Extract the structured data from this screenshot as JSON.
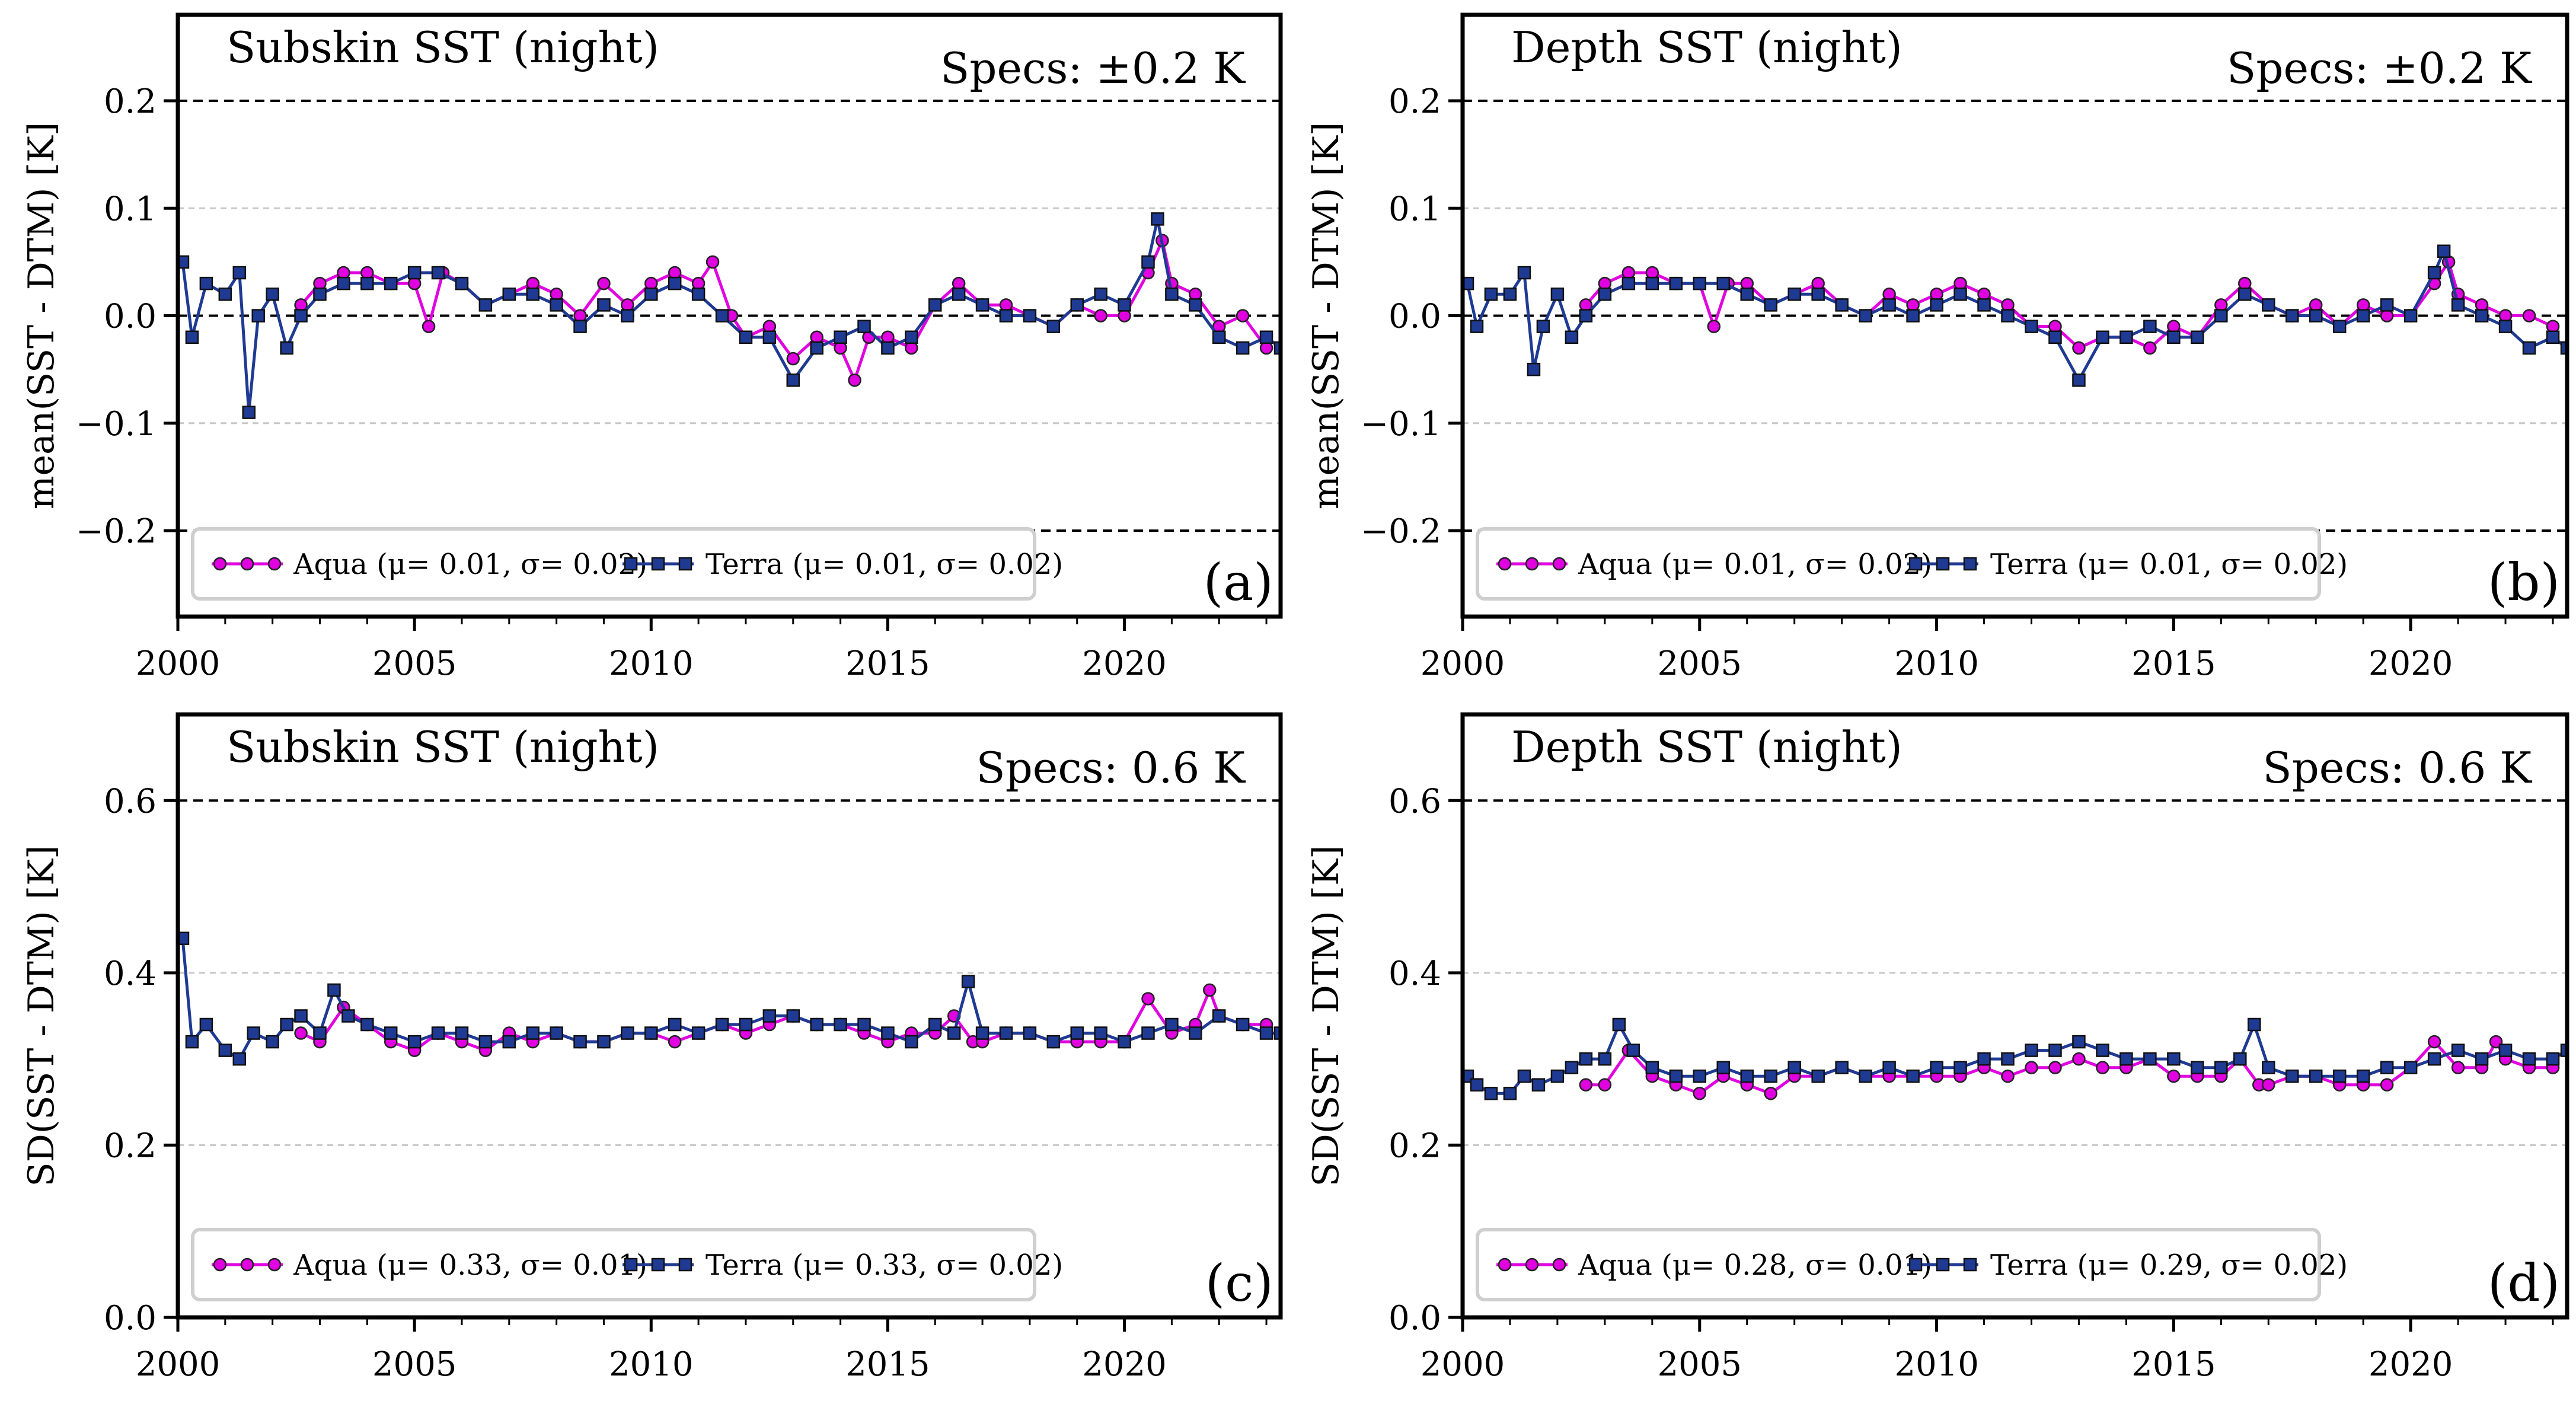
{
  "chart_data": [
    {
      "type": "line",
      "panel_label": "(a)",
      "title": "Subskin SST (night)",
      "spec_text": "Specs: ±0.2 K",
      "ylabel": "mean(SST - DTM) [K]",
      "xlim": [
        2000,
        2023.3
      ],
      "ylim": [
        -0.28,
        0.28
      ],
      "xticks": [
        "2000",
        "2005",
        "2010",
        "2015",
        "2020"
      ],
      "xtick_values": [
        2000,
        2005,
        2010,
        2015,
        2020
      ],
      "yticks": [
        "−0.2",
        "−0.1",
        "0.0",
        "0.1",
        "0.2"
      ],
      "ytick_values": [
        -0.2,
        -0.1,
        0.0,
        0.1,
        0.2
      ],
      "gridlines": [
        -0.1,
        0.1
      ],
      "reference_lines": [
        -0.2,
        0.0,
        0.2
      ],
      "legend": [
        "Aqua (μ= 0.01, σ= 0.02)",
        "Terra (μ= 0.01, σ= 0.02)"
      ],
      "series": [
        {
          "name": "Aqua",
          "color": "#e000e0",
          "marker": "circle",
          "x": [
            2002.6,
            2003.0,
            2003.5,
            2004.0,
            2004.5,
            2005.0,
            2005.3,
            2005.6,
            2006.0,
            2006.5,
            2007.0,
            2007.5,
            2008.0,
            2008.5,
            2009.0,
            2009.5,
            2010.0,
            2010.5,
            2011.0,
            2011.3,
            2011.7,
            2012.0,
            2012.5,
            2013.0,
            2013.5,
            2014.0,
            2014.3,
            2014.6,
            2015.0,
            2015.5,
            2016.0,
            2016.5,
            2017.0,
            2017.5,
            2018.0,
            2018.5,
            2019.0,
            2019.5,
            2020.0,
            2020.5,
            2020.8,
            2021.0,
            2021.5,
            2022.0,
            2022.5,
            2023.0
          ],
          "y": [
            0.01,
            0.03,
            0.04,
            0.04,
            0.03,
            0.03,
            -0.01,
            0.04,
            0.03,
            0.01,
            0.02,
            0.03,
            0.02,
            0.0,
            0.03,
            0.01,
            0.03,
            0.04,
            0.03,
            0.05,
            0.0,
            -0.02,
            -0.01,
            -0.04,
            -0.02,
            -0.03,
            -0.06,
            -0.02,
            -0.02,
            -0.03,
            0.01,
            0.03,
            0.01,
            0.01,
            0.0,
            -0.01,
            0.01,
            0.0,
            0.0,
            0.04,
            0.07,
            0.03,
            0.02,
            -0.01,
            0.0,
            -0.03
          ]
        },
        {
          "name": "Terra",
          "color": "#1f3a93",
          "marker": "square",
          "x": [
            2000.1,
            2000.3,
            2000.6,
            2001.0,
            2001.3,
            2001.5,
            2001.7,
            2002.0,
            2002.3,
            2002.6,
            2003.0,
            2003.5,
            2004.0,
            2004.5,
            2005.0,
            2005.5,
            2006.0,
            2006.5,
            2007.0,
            2007.5,
            2008.0,
            2008.5,
            2009.0,
            2009.5,
            2010.0,
            2010.5,
            2011.0,
            2011.5,
            2012.0,
            2012.5,
            2013.0,
            2013.5,
            2014.0,
            2014.5,
            2015.0,
            2015.5,
            2016.0,
            2016.5,
            2017.0,
            2017.5,
            2018.0,
            2018.5,
            2019.0,
            2019.5,
            2020.0,
            2020.5,
            2020.7,
            2021.0,
            2021.5,
            2022.0,
            2022.5,
            2023.0,
            2023.3
          ],
          "y": [
            0.05,
            -0.02,
            0.03,
            0.02,
            0.04,
            -0.09,
            0.0,
            0.02,
            -0.03,
            0.0,
            0.02,
            0.03,
            0.03,
            0.03,
            0.04,
            0.04,
            0.03,
            0.01,
            0.02,
            0.02,
            0.01,
            -0.01,
            0.01,
            0.0,
            0.02,
            0.03,
            0.02,
            0.0,
            -0.02,
            -0.02,
            -0.06,
            -0.03,
            -0.02,
            -0.01,
            -0.03,
            -0.02,
            0.01,
            0.02,
            0.01,
            0.0,
            0.0,
            -0.01,
            0.01,
            0.02,
            0.01,
            0.05,
            0.09,
            0.02,
            0.01,
            -0.02,
            -0.03,
            -0.02,
            -0.03
          ]
        }
      ]
    },
    {
      "type": "line",
      "panel_label": "(b)",
      "title": "Depth SST (night)",
      "spec_text": "Specs: ±0.2 K",
      "ylabel": "mean(SST - DTM) [K]",
      "xlim": [
        2000,
        2023.3
      ],
      "ylim": [
        -0.28,
        0.28
      ],
      "xticks": [
        "2000",
        "2005",
        "2010",
        "2015",
        "2020"
      ],
      "xtick_values": [
        2000,
        2005,
        2010,
        2015,
        2020
      ],
      "yticks": [
        "−0.2",
        "−0.1",
        "0.0",
        "0.1",
        "0.2"
      ],
      "ytick_values": [
        -0.2,
        -0.1,
        0.0,
        0.1,
        0.2
      ],
      "gridlines": [
        -0.1,
        0.1
      ],
      "reference_lines": [
        -0.2,
        0.0,
        0.2
      ],
      "legend": [
        "Aqua (μ= 0.01, σ= 0.02)",
        "Terra (μ= 0.01, σ= 0.02)"
      ],
      "series": [
        {
          "name": "Aqua",
          "color": "#e000e0",
          "marker": "circle",
          "x": [
            2002.6,
            2003.0,
            2003.5,
            2004.0,
            2004.5,
            2005.0,
            2005.3,
            2005.6,
            2006.0,
            2006.5,
            2007.0,
            2007.5,
            2008.0,
            2008.5,
            2009.0,
            2009.5,
            2010.0,
            2010.5,
            2011.0,
            2011.5,
            2012.0,
            2012.5,
            2013.0,
            2013.5,
            2014.0,
            2014.5,
            2015.0,
            2015.5,
            2016.0,
            2016.5,
            2017.0,
            2017.5,
            2018.0,
            2018.5,
            2019.0,
            2019.5,
            2020.0,
            2020.5,
            2020.8,
            2021.0,
            2021.5,
            2022.0,
            2022.5,
            2023.0
          ],
          "y": [
            0.01,
            0.03,
            0.04,
            0.04,
            0.03,
            0.03,
            -0.01,
            0.03,
            0.03,
            0.01,
            0.02,
            0.03,
            0.01,
            0.0,
            0.02,
            0.01,
            0.02,
            0.03,
            0.02,
            0.01,
            -0.01,
            -0.01,
            -0.03,
            -0.02,
            -0.02,
            -0.03,
            -0.01,
            -0.02,
            0.01,
            0.03,
            0.01,
            0.0,
            0.01,
            -0.01,
            0.01,
            0.0,
            0.0,
            0.03,
            0.05,
            0.02,
            0.01,
            0.0,
            0.0,
            -0.01
          ]
        },
        {
          "name": "Terra",
          "color": "#1f3a93",
          "marker": "square",
          "x": [
            2000.1,
            2000.3,
            2000.6,
            2001.0,
            2001.3,
            2001.5,
            2001.7,
            2002.0,
            2002.3,
            2002.6,
            2003.0,
            2003.5,
            2004.0,
            2004.5,
            2005.0,
            2005.5,
            2006.0,
            2006.5,
            2007.0,
            2007.5,
            2008.0,
            2008.5,
            2009.0,
            2009.5,
            2010.0,
            2010.5,
            2011.0,
            2011.5,
            2012.0,
            2012.5,
            2013.0,
            2013.5,
            2014.0,
            2014.5,
            2015.0,
            2015.5,
            2016.0,
            2016.5,
            2017.0,
            2017.5,
            2018.0,
            2018.5,
            2019.0,
            2019.5,
            2020.0,
            2020.5,
            2020.7,
            2021.0,
            2021.5,
            2022.0,
            2022.5,
            2023.0,
            2023.3
          ],
          "y": [
            0.03,
            -0.01,
            0.02,
            0.02,
            0.04,
            -0.05,
            -0.01,
            0.02,
            -0.02,
            0.0,
            0.02,
            0.03,
            0.03,
            0.03,
            0.03,
            0.03,
            0.02,
            0.01,
            0.02,
            0.02,
            0.01,
            0.0,
            0.01,
            0.0,
            0.01,
            0.02,
            0.01,
            0.0,
            -0.01,
            -0.02,
            -0.06,
            -0.02,
            -0.02,
            -0.01,
            -0.02,
            -0.02,
            0.0,
            0.02,
            0.01,
            0.0,
            0.0,
            -0.01,
            0.0,
            0.01,
            0.0,
            0.04,
            0.06,
            0.01,
            0.0,
            -0.01,
            -0.03,
            -0.02,
            -0.03
          ]
        }
      ]
    },
    {
      "type": "line",
      "panel_label": "(c)",
      "title": "Subskin SST (night)",
      "spec_text": "Specs: 0.6 K",
      "ylabel": "SD(SST - DTM) [K]",
      "xlim": [
        2000,
        2023.3
      ],
      "ylim": [
        0.0,
        0.7
      ],
      "xticks": [
        "2000",
        "2005",
        "2010",
        "2015",
        "2020"
      ],
      "xtick_values": [
        2000,
        2005,
        2010,
        2015,
        2020
      ],
      "yticks": [
        "0.0",
        "0.2",
        "0.4",
        "0.6"
      ],
      "ytick_values": [
        0.0,
        0.2,
        0.4,
        0.6
      ],
      "gridlines": [
        0.2,
        0.4
      ],
      "reference_lines": [
        0.6
      ],
      "legend": [
        "Aqua (μ= 0.33, σ= 0.01)",
        "Terra (μ= 0.33, σ= 0.02)"
      ],
      "series": [
        {
          "name": "Aqua",
          "color": "#e000e0",
          "marker": "circle",
          "x": [
            2002.6,
            2003.0,
            2003.5,
            2004.0,
            2004.5,
            2005.0,
            2005.5,
            2006.0,
            2006.5,
            2007.0,
            2007.5,
            2008.0,
            2008.5,
            2009.0,
            2009.5,
            2010.0,
            2010.5,
            2011.0,
            2011.5,
            2012.0,
            2012.5,
            2013.0,
            2013.5,
            2014.0,
            2014.5,
            2015.0,
            2015.5,
            2016.0,
            2016.4,
            2016.8,
            2017.0,
            2017.5,
            2018.0,
            2018.5,
            2019.0,
            2019.5,
            2020.0,
            2020.5,
            2021.0,
            2021.5,
            2021.8,
            2022.0,
            2022.5,
            2023.0
          ],
          "y": [
            0.33,
            0.32,
            0.36,
            0.34,
            0.32,
            0.31,
            0.33,
            0.32,
            0.31,
            0.33,
            0.32,
            0.33,
            0.32,
            0.32,
            0.33,
            0.33,
            0.32,
            0.33,
            0.34,
            0.33,
            0.34,
            0.35,
            0.34,
            0.34,
            0.33,
            0.32,
            0.33,
            0.33,
            0.35,
            0.32,
            0.32,
            0.33,
            0.33,
            0.32,
            0.32,
            0.32,
            0.32,
            0.37,
            0.33,
            0.34,
            0.38,
            0.35,
            0.34,
            0.34
          ]
        },
        {
          "name": "Terra",
          "color": "#1f3a93",
          "marker": "square",
          "x": [
            2000.1,
            2000.3,
            2000.6,
            2001.0,
            2001.3,
            2001.6,
            2002.0,
            2002.3,
            2002.6,
            2003.0,
            2003.3,
            2003.6,
            2004.0,
            2004.5,
            2005.0,
            2005.5,
            2006.0,
            2006.5,
            2007.0,
            2007.5,
            2008.0,
            2008.5,
            2009.0,
            2009.5,
            2010.0,
            2010.5,
            2011.0,
            2011.5,
            2012.0,
            2012.5,
            2013.0,
            2013.5,
            2014.0,
            2014.5,
            2015.0,
            2015.5,
            2016.0,
            2016.4,
            2016.7,
            2017.0,
            2017.5,
            2018.0,
            2018.5,
            2019.0,
            2019.5,
            2020.0,
            2020.5,
            2021.0,
            2021.5,
            2022.0,
            2022.5,
            2023.0,
            2023.3
          ],
          "y": [
            0.44,
            0.32,
            0.34,
            0.31,
            0.3,
            0.33,
            0.32,
            0.34,
            0.35,
            0.33,
            0.38,
            0.35,
            0.34,
            0.33,
            0.32,
            0.33,
            0.33,
            0.32,
            0.32,
            0.33,
            0.33,
            0.32,
            0.32,
            0.33,
            0.33,
            0.34,
            0.33,
            0.34,
            0.34,
            0.35,
            0.35,
            0.34,
            0.34,
            0.34,
            0.33,
            0.32,
            0.34,
            0.33,
            0.39,
            0.33,
            0.33,
            0.33,
            0.32,
            0.33,
            0.33,
            0.32,
            0.33,
            0.34,
            0.33,
            0.35,
            0.34,
            0.33,
            0.33
          ]
        }
      ]
    },
    {
      "type": "line",
      "panel_label": "(d)",
      "title": "Depth SST (night)",
      "spec_text": "Specs: 0.6 K",
      "ylabel": "SD(SST - DTM) [K]",
      "xlim": [
        2000,
        2023.3
      ],
      "ylim": [
        0.0,
        0.7
      ],
      "xticks": [
        "2000",
        "2005",
        "2010",
        "2015",
        "2020"
      ],
      "xtick_values": [
        2000,
        2005,
        2010,
        2015,
        2020
      ],
      "yticks": [
        "0.0",
        "0.2",
        "0.4",
        "0.6"
      ],
      "ytick_values": [
        0.0,
        0.2,
        0.4,
        0.6
      ],
      "gridlines": [
        0.2,
        0.4
      ],
      "reference_lines": [
        0.6
      ],
      "legend": [
        "Aqua (μ= 0.28, σ= 0.01)",
        "Terra (μ= 0.29, σ= 0.02)"
      ],
      "series": [
        {
          "name": "Aqua",
          "color": "#e000e0",
          "marker": "circle",
          "x": [
            2002.6,
            2003.0,
            2003.5,
            2004.0,
            2004.5,
            2005.0,
            2005.5,
            2006.0,
            2006.5,
            2007.0,
            2007.5,
            2008.0,
            2008.5,
            2009.0,
            2009.5,
            2010.0,
            2010.5,
            2011.0,
            2011.5,
            2012.0,
            2012.5,
            2013.0,
            2013.5,
            2014.0,
            2014.5,
            2015.0,
            2015.5,
            2016.0,
            2016.4,
            2016.8,
            2017.0,
            2017.5,
            2018.0,
            2018.5,
            2019.0,
            2019.5,
            2020.0,
            2020.5,
            2021.0,
            2021.5,
            2021.8,
            2022.0,
            2022.5,
            2023.0
          ],
          "y": [
            0.27,
            0.27,
            0.31,
            0.28,
            0.27,
            0.26,
            0.28,
            0.27,
            0.26,
            0.28,
            0.28,
            0.29,
            0.28,
            0.28,
            0.28,
            0.28,
            0.28,
            0.29,
            0.28,
            0.29,
            0.29,
            0.3,
            0.29,
            0.29,
            0.3,
            0.28,
            0.28,
            0.28,
            0.3,
            0.27,
            0.27,
            0.28,
            0.28,
            0.27,
            0.27,
            0.27,
            0.29,
            0.32,
            0.29,
            0.29,
            0.32,
            0.3,
            0.29,
            0.29
          ]
        },
        {
          "name": "Terra",
          "color": "#1f3a93",
          "marker": "square",
          "x": [
            2000.1,
            2000.3,
            2000.6,
            2001.0,
            2001.3,
            2001.6,
            2002.0,
            2002.3,
            2002.6,
            2003.0,
            2003.3,
            2003.6,
            2004.0,
            2004.5,
            2005.0,
            2005.5,
            2006.0,
            2006.5,
            2007.0,
            2007.5,
            2008.0,
            2008.5,
            2009.0,
            2009.5,
            2010.0,
            2010.5,
            2011.0,
            2011.5,
            2012.0,
            2012.5,
            2013.0,
            2013.5,
            2014.0,
            2014.5,
            2015.0,
            2015.5,
            2016.0,
            2016.4,
            2016.7,
            2017.0,
            2017.5,
            2018.0,
            2018.5,
            2019.0,
            2019.5,
            2020.0,
            2020.5,
            2021.0,
            2021.5,
            2022.0,
            2022.5,
            2023.0,
            2023.3
          ],
          "y": [
            0.28,
            0.27,
            0.26,
            0.26,
            0.28,
            0.27,
            0.28,
            0.29,
            0.3,
            0.3,
            0.34,
            0.31,
            0.29,
            0.28,
            0.28,
            0.29,
            0.28,
            0.28,
            0.29,
            0.28,
            0.29,
            0.28,
            0.29,
            0.28,
            0.29,
            0.29,
            0.3,
            0.3,
            0.31,
            0.31,
            0.32,
            0.31,
            0.3,
            0.3,
            0.3,
            0.29,
            0.29,
            0.3,
            0.34,
            0.29,
            0.28,
            0.28,
            0.28,
            0.28,
            0.29,
            0.29,
            0.3,
            0.31,
            0.3,
            0.31,
            0.3,
            0.3,
            0.31
          ]
        }
      ]
    }
  ]
}
